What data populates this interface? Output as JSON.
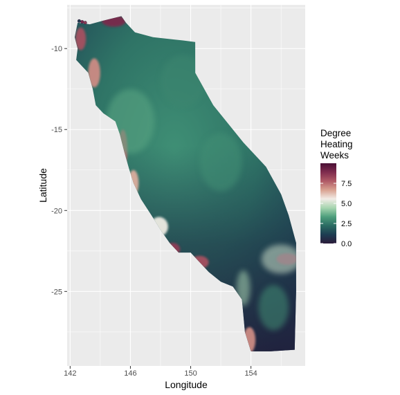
{
  "plot": {
    "xlabel": "Longitude",
    "ylabel": "Latitude",
    "xlim": [
      141.8,
      157.6
    ],
    "ylim": [
      -29.6,
      -7.3
    ],
    "x_ticks": [
      {
        "value": 142,
        "label": "142"
      },
      {
        "value": 146,
        "label": "146"
      },
      {
        "value": 150,
        "label": "150"
      },
      {
        "value": 154,
        "label": "154"
      }
    ],
    "y_ticks": [
      {
        "value": -10,
        "label": "-10"
      },
      {
        "value": -15,
        "label": "-15"
      },
      {
        "value": -20,
        "label": "-20"
      },
      {
        "value": -25,
        "label": "-25"
      }
    ],
    "panel_background": "#ebebeb",
    "grid_color": "#ffffff"
  },
  "legend": {
    "title_lines": [
      "Degree",
      "Heating",
      "Weeks"
    ],
    "range": [
      0,
      10
    ],
    "breaks": [
      {
        "value": 0.0,
        "label": "0.0"
      },
      {
        "value": 2.5,
        "label": "2.5"
      },
      {
        "value": 5.0,
        "label": "5.0"
      },
      {
        "value": 7.5,
        "label": "7.5"
      }
    ],
    "colors": [
      "#2a1b3a",
      "#1d3d52",
      "#2a6b62",
      "#4e9f7c",
      "#a7d5b0",
      "#f2ece6",
      "#d9a291",
      "#b05a66",
      "#7f2c4e",
      "#4a1035"
    ]
  },
  "map": {
    "region_outline": [
      [
        142.5,
        -8.4
      ],
      [
        143.3,
        -8.5
      ],
      [
        144.1,
        -8.3
      ],
      [
        145.4,
        -8.0
      ],
      [
        145.7,
        -8.4
      ],
      [
        146.3,
        -9.0
      ],
      [
        147.5,
        -9.3
      ],
      [
        149.5,
        -9.5
      ],
      [
        150.3,
        -9.6
      ],
      [
        150.3,
        -11.5
      ],
      [
        151.5,
        -13.5
      ],
      [
        153.5,
        -15.8
      ],
      [
        155.0,
        -17.3
      ],
      [
        156.0,
        -19.0
      ],
      [
        156.5,
        -20.3
      ],
      [
        157.0,
        -22.0
      ],
      [
        157.0,
        -25.0
      ],
      [
        156.9,
        -28.6
      ],
      [
        155.3,
        -28.7
      ],
      [
        154.0,
        -28.7
      ],
      [
        153.6,
        -27.5
      ],
      [
        153.4,
        -25.5
      ],
      [
        152.8,
        -24.7
      ],
      [
        152.0,
        -24.4
      ],
      [
        151.2,
        -23.8
      ],
      [
        150.6,
        -23.2
      ],
      [
        150.0,
        -22.6
      ],
      [
        149.2,
        -22.6
      ],
      [
        148.6,
        -22.0
      ],
      [
        148.0,
        -21.2
      ],
      [
        147.4,
        -20.3
      ],
      [
        146.7,
        -19.3
      ],
      [
        146.2,
        -18.3
      ],
      [
        145.9,
        -17.4
      ],
      [
        145.6,
        -16.4
      ],
      [
        145.3,
        -15.3
      ],
      [
        145.0,
        -14.5
      ],
      [
        144.2,
        -14.0
      ],
      [
        143.7,
        -13.5
      ],
      [
        143.5,
        -12.5
      ],
      [
        143.2,
        -11.5
      ],
      [
        142.7,
        -11.0
      ],
      [
        142.4,
        -10.7
      ],
      [
        142.5,
        -10.0
      ],
      [
        142.3,
        -9.3
      ]
    ],
    "dhw_hotspots": [
      {
        "lon": 144.9,
        "lat": -8.3,
        "value": 9.0,
        "rx": 0.8,
        "ry": 0.35
      },
      {
        "lon": 142.7,
        "lat": -9.4,
        "value": 8.0,
        "rx": 0.35,
        "ry": 0.7
      },
      {
        "lon": 143.6,
        "lat": -11.5,
        "value": 7.0,
        "rx": 0.4,
        "ry": 0.9
      },
      {
        "lon": 145.5,
        "lat": -16.2,
        "value": 7.5,
        "rx": 0.3,
        "ry": 1.2
      },
      {
        "lon": 146.2,
        "lat": -18.3,
        "value": 6.5,
        "rx": 0.35,
        "ry": 0.8
      },
      {
        "lon": 147.9,
        "lat": -21.0,
        "value": 5.5,
        "rx": 0.6,
        "ry": 0.6
      },
      {
        "lon": 148.8,
        "lat": -22.4,
        "value": 8.5,
        "rx": 0.5,
        "ry": 0.4
      },
      {
        "lon": 150.6,
        "lat": -23.2,
        "value": 8.0,
        "rx": 0.6,
        "ry": 0.4
      },
      {
        "lon": 156.4,
        "lat": -23.0,
        "value": 9.5,
        "rx": 0.7,
        "ry": 0.35
      },
      {
        "lon": 156.0,
        "lat": -23.0,
        "value": 5.0,
        "rx": 1.3,
        "ry": 0.9
      },
      {
        "lon": 153.5,
        "lat": -24.8,
        "value": 4.5,
        "rx": 0.45,
        "ry": 1.1
      },
      {
        "lon": 153.9,
        "lat": -28.0,
        "value": 7.0,
        "rx": 0.4,
        "ry": 0.8
      },
      {
        "lon": 155.5,
        "lat": -26.0,
        "value": 3.0,
        "rx": 1.0,
        "ry": 1.4
      },
      {
        "lon": 146.0,
        "lat": -14.5,
        "value": 3.5,
        "rx": 1.6,
        "ry": 2.0
      },
      {
        "lon": 149.5,
        "lat": -12.0,
        "value": 2.8,
        "rx": 1.5,
        "ry": 1.6
      },
      {
        "lon": 152.0,
        "lat": -17.0,
        "value": 3.0,
        "rx": 1.4,
        "ry": 1.8
      }
    ],
    "islets": [
      {
        "lon": 142.6,
        "lat": -8.3,
        "value": 1.0
      },
      {
        "lon": 142.8,
        "lat": -8.35,
        "value": 9.0
      },
      {
        "lon": 143.0,
        "lat": -8.4,
        "value": 8.5
      }
    ]
  }
}
